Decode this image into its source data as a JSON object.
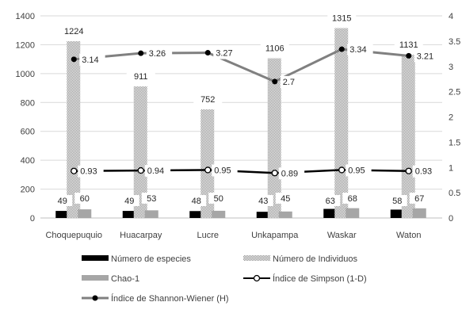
{
  "chart_data": {
    "type": "bar",
    "categories": [
      "Choquepuquio",
      "Huacarpay",
      "Lucre",
      "Unkapampa",
      "Waskar",
      "Waton"
    ],
    "series": [
      {
        "name": "Número de especies",
        "kind": "bar",
        "axis": "left",
        "color": "#000000",
        "values": [
          49,
          49,
          48,
          43,
          63,
          58
        ]
      },
      {
        "name": "Número de Individuos",
        "kind": "bar",
        "axis": "left",
        "color": "#bfbfbf",
        "pattern": "dotted",
        "values": [
          1224,
          911,
          752,
          1106,
          1315,
          1131
        ]
      },
      {
        "name": "Chao-1",
        "kind": "bar",
        "axis": "left",
        "color": "#a6a6a6",
        "values": [
          60,
          53,
          50,
          45,
          68,
          67
        ]
      },
      {
        "name": "Índice de Simpson (1-D)",
        "kind": "line",
        "axis": "right",
        "color": "#000000",
        "marker": "open-circle",
        "values": [
          0.93,
          0.94,
          0.95,
          0.89,
          0.95,
          0.93
        ]
      },
      {
        "name": "Índice de Shannon-Wiener (H)",
        "kind": "line",
        "axis": "right",
        "color": "#808080",
        "marker": "filled-circle",
        "values": [
          3.14,
          3.26,
          3.27,
          2.7,
          3.34,
          3.21
        ]
      }
    ],
    "data_labels": {
      "especies": [
        "49",
        "49",
        "48",
        "43",
        "63",
        "58"
      ],
      "individuos": [
        "1224",
        "911",
        "752",
        "1106",
        "1315",
        "1131"
      ],
      "chao": [
        "60",
        "53",
        "50",
        "45",
        "68",
        "67"
      ],
      "simpson": [
        "0.93",
        "0.94",
        "0.95",
        "0.89",
        "0.95",
        "0.93"
      ],
      "shannon": [
        "3.14",
        "3.26",
        "3.27",
        "2.7",
        "3.34",
        "3.21"
      ]
    },
    "y_left": {
      "ylim": [
        0,
        1400
      ],
      "ticks": [
        "0",
        "200",
        "400",
        "600",
        "800",
        "1000",
        "1200",
        "1400"
      ]
    },
    "y_right": {
      "ylim": [
        0,
        4
      ],
      "ticks": [
        "0",
        "0.5",
        "1",
        "1.5",
        "2",
        "2.5",
        "3",
        "3.5",
        "4"
      ]
    },
    "grid": true,
    "legend_position": "bottom",
    "title": "",
    "xlabel": "",
    "ylabel": ""
  }
}
